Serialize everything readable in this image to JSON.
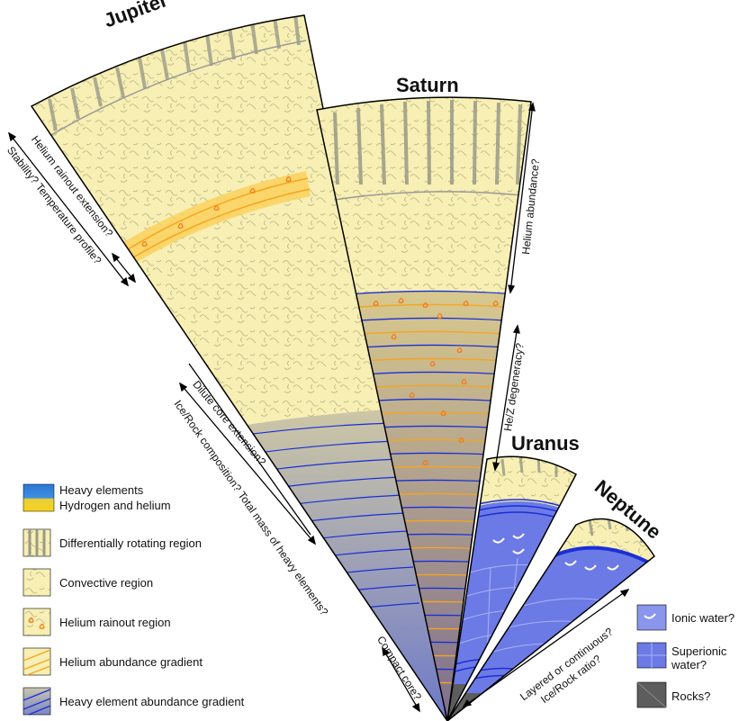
{
  "planets": {
    "jupiter": "Jupiter",
    "saturn": "Saturn",
    "uranus": "Uranus",
    "neptune": "Neptune"
  },
  "annotations": {
    "stability": "Stability? Temperature profile?",
    "helium_rainout": "Helium rainout extension?",
    "dilute_core": "Dilute core extension?",
    "ice_rock": "Ice/Rock composition? Total mass of heavy elements?",
    "compact_core": "Compact core?",
    "helium_abundance": "Helium abundance?",
    "hez_degeneracy": "He/Z degeneracy?",
    "layered": "Layered or continuous?",
    "ice_rock_ratio": "Ice/Rock ratio?"
  },
  "legend": {
    "heavy_elements": "Heavy elements",
    "hydrogen_helium": "Hydrogen and helium",
    "diff_rotating": "Differentially rotating region",
    "convective": "Convective region",
    "helium_rainout": "Helium rainout region",
    "helium_gradient": "Helium abundance gradient",
    "heavy_gradient": "Heavy element abundance gradient"
  },
  "legend_right": {
    "ionic_water": "Ionic water?",
    "superionic_water": "Superionic water?",
    "rocks": "Rocks?"
  },
  "colors": {
    "yellow": "#f7efb3",
    "blue": "#6b78c4",
    "orange": "#f7a41d",
    "line_blue": "#1a2fd6",
    "superionic": "#6c7ae6",
    "rock": "#5d5d5d"
  }
}
